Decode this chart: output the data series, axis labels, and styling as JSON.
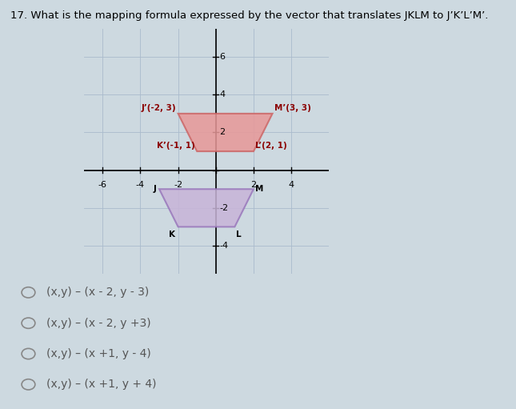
{
  "title": "17. What is the mapping formula expressed by the vector that translates JKLM to J’K’L’M’.",
  "bg_color": "#cdd9e0",
  "plot_bg": "#d5e0e8",
  "xlim": [
    -7,
    6
  ],
  "ylim": [
    -5.5,
    7.5
  ],
  "xticks": [
    -6,
    -4,
    -2,
    0,
    2,
    4
  ],
  "yticks": [
    -4,
    -2,
    0,
    2,
    4,
    6
  ],
  "grid_color": "#aabbcc",
  "JKLM": [
    [
      -3,
      -1
    ],
    [
      -2,
      -3
    ],
    [
      1,
      -3
    ],
    [
      2,
      -1
    ]
  ],
  "JKLM_color": "#c8b4d8",
  "JKLM_edge": "#9977bb",
  "JKLM_label_J": [
    -3.15,
    -1.0
  ],
  "JKLM_label_K": [
    -2.15,
    -3.2
  ],
  "JKLM_label_L": [
    1.05,
    -3.2
  ],
  "JKLM_label_M": [
    2.1,
    -1.0
  ],
  "JpKpLpMp": [
    [
      -2,
      3
    ],
    [
      -1,
      1
    ],
    [
      2,
      1
    ],
    [
      3,
      3
    ]
  ],
  "JpKpLpMp_color": "#e89898",
  "JpKpLpMp_edge": "#cc6666",
  "label_Jp": [
    -2.1,
    3.1
  ],
  "label_Mp": [
    3.1,
    3.1
  ],
  "label_Kp": [
    -1.1,
    1.1
  ],
  "label_Lp": [
    2.1,
    1.1
  ],
  "ytick_labels": [
    [
      6,
      "6"
    ],
    [
      4,
      "4"
    ],
    [
      2,
      "2"
    ],
    [
      -2,
      "-2"
    ],
    [
      -4,
      "-4"
    ]
  ],
  "xtick_labels": [
    [
      -6,
      "-6"
    ],
    [
      -4,
      "-4"
    ],
    [
      -2,
      "-2"
    ],
    [
      2,
      "2"
    ],
    [
      4,
      "4"
    ]
  ],
  "choices": [
    "(x,y) – (x - 2, y - 3)",
    "(x,y) – (x - 2, y +3)",
    "(x,y) – (x +1, y - 4)",
    "(x,y) – (x +1, y + 4)"
  ]
}
